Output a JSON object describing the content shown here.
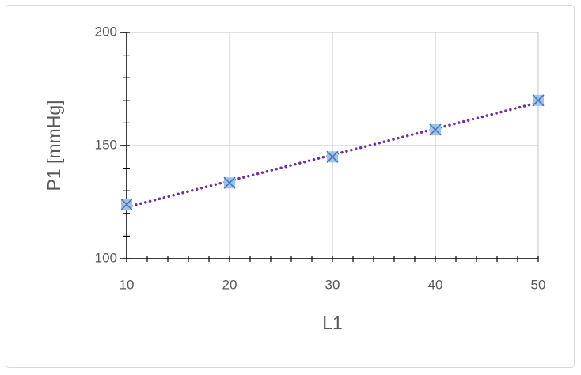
{
  "chart_data": {
    "type": "scatter",
    "x_label": "L1",
    "y_label": "P1 [mmHg]",
    "x": [
      10,
      20,
      30,
      40,
      50
    ],
    "values": [
      124,
      133.5,
      145,
      157,
      170
    ],
    "color": "#9dc3e6",
    "marker_edge_color": "#4472c4",
    "marker": "x-square",
    "trendline": {
      "type": "linear",
      "color": "#7030a0",
      "style": "dotted"
    },
    "xlim": [
      10,
      50
    ],
    "xticks": [
      10,
      20,
      30,
      40,
      50
    ],
    "ylim": [
      100,
      200
    ],
    "yticks": [
      100,
      150,
      200
    ],
    "grid": true,
    "minor_ticks": true
  }
}
